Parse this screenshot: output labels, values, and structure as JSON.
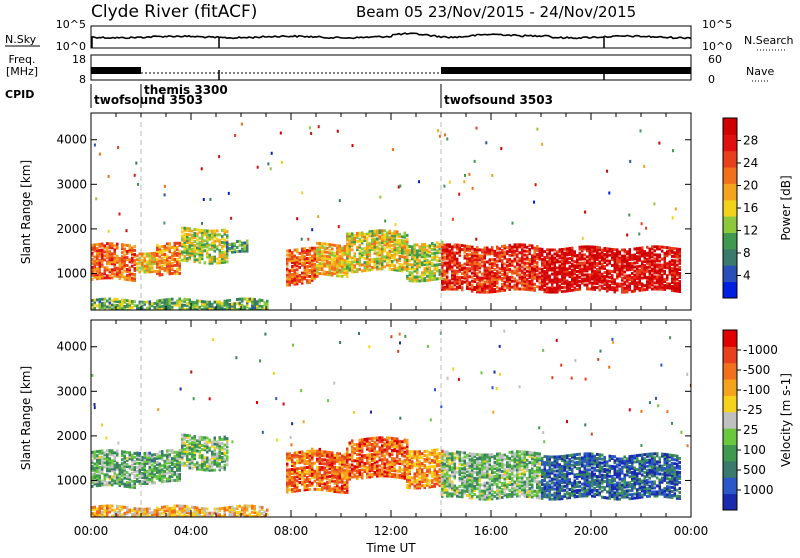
{
  "header": {
    "title": "Clyde River (fitACF)",
    "beam_info": "Beam 05  23/Nov/2015 - 24/Nov/2015"
  },
  "nsky_panel": {
    "left_label": "N.Sky",
    "left_ticks": [
      "10^5",
      "10^0"
    ],
    "right_ticks": [
      "10^5",
      "10^0"
    ],
    "right_label": "N.Search"
  },
  "freq_panel": {
    "left_label_top": "Freq.",
    "left_label_bottom": "[MHz]",
    "left_ticks": [
      "18",
      "8"
    ],
    "right_ticks": [
      "60",
      "0"
    ],
    "right_label": "Nave"
  },
  "cpid": {
    "label": "CPID",
    "segments": [
      {
        "name": "twofsound 3503",
        "start": 0,
        "end": 2
      },
      {
        "name": "themis 3300",
        "start": 2,
        "end": 14
      },
      {
        "name": "twofsound 3503",
        "start": 14,
        "end": 24
      }
    ]
  },
  "chart_data": [
    {
      "type": "heatmap",
      "quantity": "power",
      "ylabel": "Slant Range [km]",
      "y_ticks": [
        1000,
        2000,
        3000,
        4000
      ],
      "ylim": [
        180,
        4600
      ],
      "xlim": [
        0,
        24
      ],
      "colorbar": {
        "label": "Power [dB]",
        "ticks": [
          "4",
          "8",
          "12",
          "16",
          "20",
          "24",
          "28"
        ],
        "colors": [
          "#0020e0",
          "#2850b8",
          "#3a7a6a",
          "#3f9a50",
          "#8ec83c",
          "#f3d21c",
          "#f6a21c",
          "#f0701c",
          "#e8401c",
          "#e01010",
          "#d00000"
        ]
      },
      "echo_regions": [
        {
          "t0": 0.0,
          "t1": 1.8,
          "r0": 900,
          "r1": 1700,
          "level": 0.72
        },
        {
          "t0": 1.8,
          "t1": 2.6,
          "r0": 1100,
          "r1": 1550,
          "level": 0.55
        },
        {
          "t0": 2.6,
          "t1": 3.6,
          "r0": 1000,
          "r1": 1700,
          "level": 0.65
        },
        {
          "t0": 3.6,
          "t1": 5.4,
          "r0": 1300,
          "r1": 2050,
          "level": 0.45
        },
        {
          "t0": 5.4,
          "t1": 6.2,
          "r0": 1500,
          "r1": 1750,
          "level": 0.3
        },
        {
          "t0": 7.8,
          "t1": 9.0,
          "r0": 800,
          "r1": 1600,
          "level": 0.72
        },
        {
          "t0": 9.0,
          "t1": 10.2,
          "r0": 1000,
          "r1": 1700,
          "level": 0.55
        },
        {
          "t0": 10.2,
          "t1": 12.6,
          "r0": 1100,
          "r1": 2000,
          "level": 0.5
        },
        {
          "t0": 12.6,
          "t1": 14.0,
          "r0": 900,
          "r1": 1750,
          "level": 0.45
        },
        {
          "t0": 14.0,
          "t1": 18.0,
          "r0": 650,
          "r1": 1650,
          "level": 0.82
        },
        {
          "t0": 18.0,
          "t1": 23.6,
          "r0": 650,
          "r1": 1600,
          "level": 0.92
        },
        {
          "t0": 0.0,
          "t1": 7.0,
          "r0": 200,
          "r1": 450,
          "level": 0.35
        }
      ]
    },
    {
      "type": "heatmap",
      "quantity": "velocity",
      "ylabel": "Slant Range [km]",
      "y_ticks": [
        1000,
        2000,
        3000,
        4000
      ],
      "ylim": [
        180,
        4600
      ],
      "xlim": [
        0,
        24
      ],
      "xlabel": "Time UT",
      "x_ticks": [
        "00:00",
        "04:00",
        "08:00",
        "12:00",
        "16:00",
        "20:00",
        "00:00"
      ],
      "colorbar": {
        "label": "Velocity [m s-1]",
        "ticks": [
          "1000",
          "500",
          "100",
          "25",
          "-25",
          "-100",
          "-500",
          "-1000"
        ],
        "colors": [
          "#1a2ab0",
          "#2a58c8",
          "#3a7a6a",
          "#3f9a50",
          "#6ac83c",
          "#c0c0c0",
          "#f6d21c",
          "#f6a21c",
          "#f0701c",
          "#e8401c",
          "#e00000"
        ]
      },
      "echo_regions": [
        {
          "t0": 0.0,
          "t1": 1.8,
          "r0": 900,
          "r1": 1700,
          "level": 0.38
        },
        {
          "t0": 1.8,
          "t1": 3.6,
          "r0": 1000,
          "r1": 1700,
          "level": 0.35
        },
        {
          "t0": 3.6,
          "t1": 5.4,
          "r0": 1300,
          "r1": 2050,
          "level": 0.4
        },
        {
          "t0": 7.8,
          "t1": 10.2,
          "r0": 800,
          "r1": 1700,
          "level": 0.78
        },
        {
          "t0": 10.2,
          "t1": 12.6,
          "r0": 1100,
          "r1": 2000,
          "level": 0.8
        },
        {
          "t0": 12.6,
          "t1": 14.0,
          "r0": 900,
          "r1": 1750,
          "level": 0.72
        },
        {
          "t0": 14.0,
          "t1": 18.0,
          "r0": 650,
          "r1": 1650,
          "level": 0.4
        },
        {
          "t0": 18.0,
          "t1": 23.6,
          "r0": 650,
          "r1": 1600,
          "level": 0.15
        },
        {
          "t0": 0.0,
          "t1": 7.0,
          "r0": 200,
          "r1": 450,
          "level": 0.65
        }
      ]
    }
  ]
}
